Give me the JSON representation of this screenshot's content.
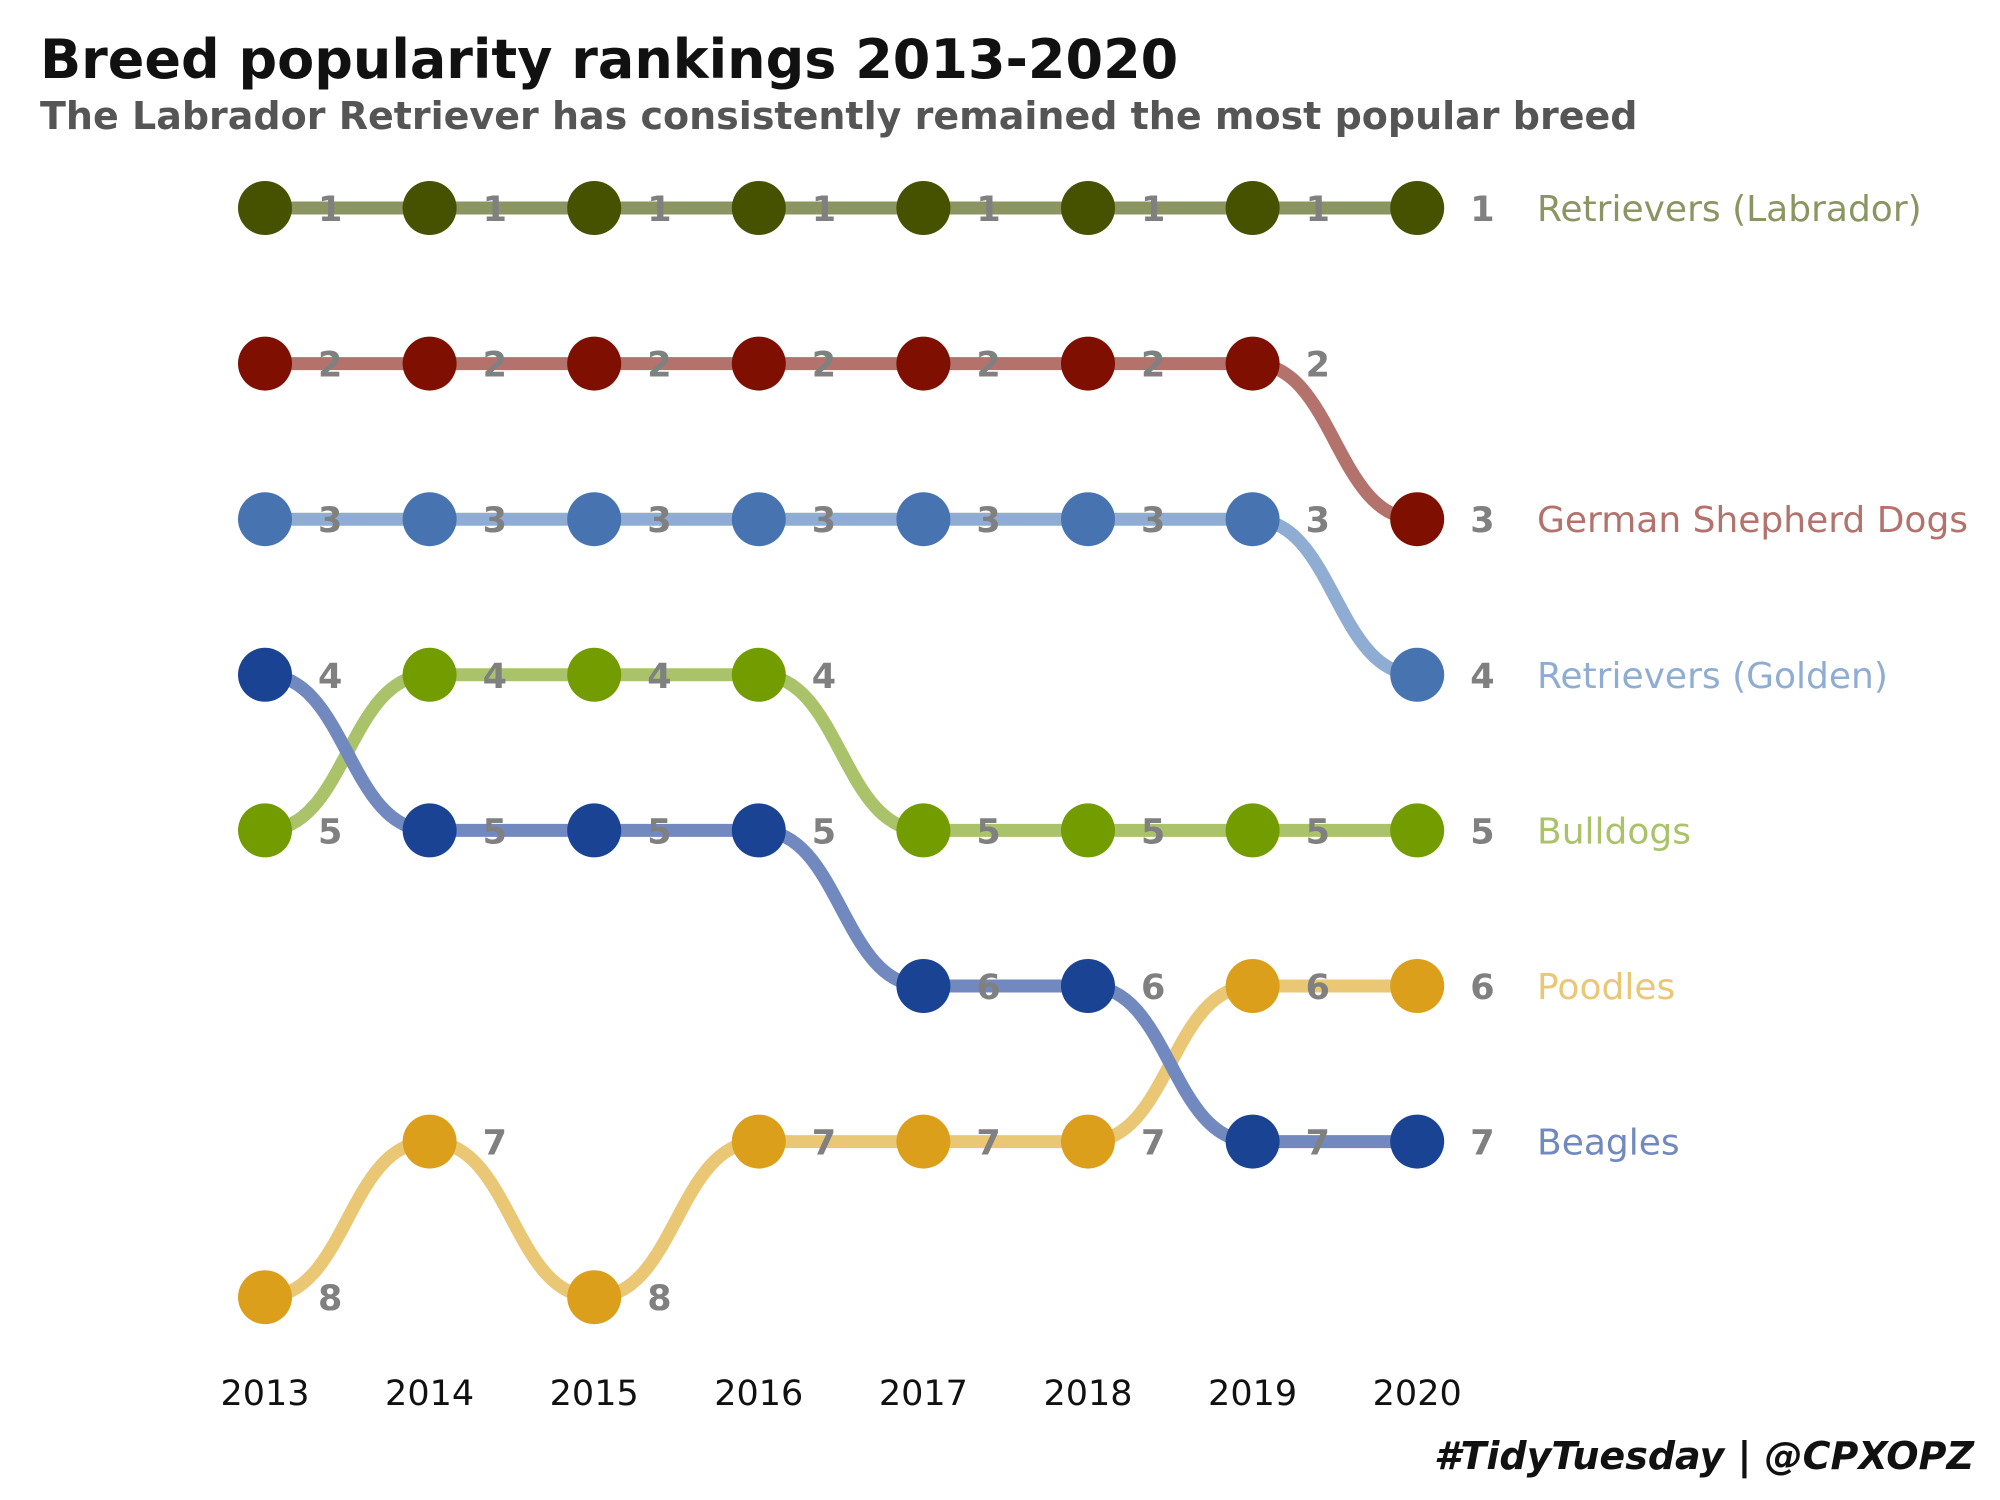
{
  "chart_data": {
    "type": "line",
    "title": "Breed popularity rankings 2013-2020",
    "subtitle": "The Labrador Retriever has consistently remained the most popular breed",
    "caption": "#TidyTuesday | @CPXOPZ",
    "x": [
      "2013",
      "2014",
      "2015",
      "2016",
      "2017",
      "2018",
      "2019",
      "2020"
    ],
    "y_scale": "rank (reversed, 1 at top)",
    "ylim": [
      8,
      1
    ],
    "grid": false,
    "legend": "direct labels at right end of lines",
    "series": [
      {
        "name": "Retrievers (Labrador)",
        "values": [
          1,
          1,
          1,
          1,
          1,
          1,
          1,
          1
        ],
        "line_color": "#8a9562",
        "point_color": "#465200"
      },
      {
        "name": "German Shepherd Dogs",
        "values": [
          2,
          2,
          2,
          2,
          2,
          2,
          2,
          3
        ],
        "line_color": "#b3726c",
        "point_color": "#7f0f00"
      },
      {
        "name": "Retrievers (Golden)",
        "values": [
          3,
          3,
          3,
          3,
          3,
          3,
          3,
          4
        ],
        "line_color": "#8fadd3",
        "point_color": "#4774b1"
      },
      {
        "name": "Bulldogs",
        "values": [
          5,
          4,
          4,
          4,
          5,
          5,
          5,
          5
        ],
        "line_color": "#aac36b",
        "point_color": "#739c00"
      },
      {
        "name": "Poodles",
        "values": [
          8,
          7,
          8,
          7,
          7,
          7,
          6,
          6
        ],
        "line_color": "#eac775",
        "point_color": "#db9f1c"
      },
      {
        "name": "Beagles",
        "values": [
          4,
          5,
          5,
          5,
          6,
          6,
          7,
          7
        ],
        "line_color": "#7289c0",
        "point_color": "#1a4394"
      }
    ]
  }
}
